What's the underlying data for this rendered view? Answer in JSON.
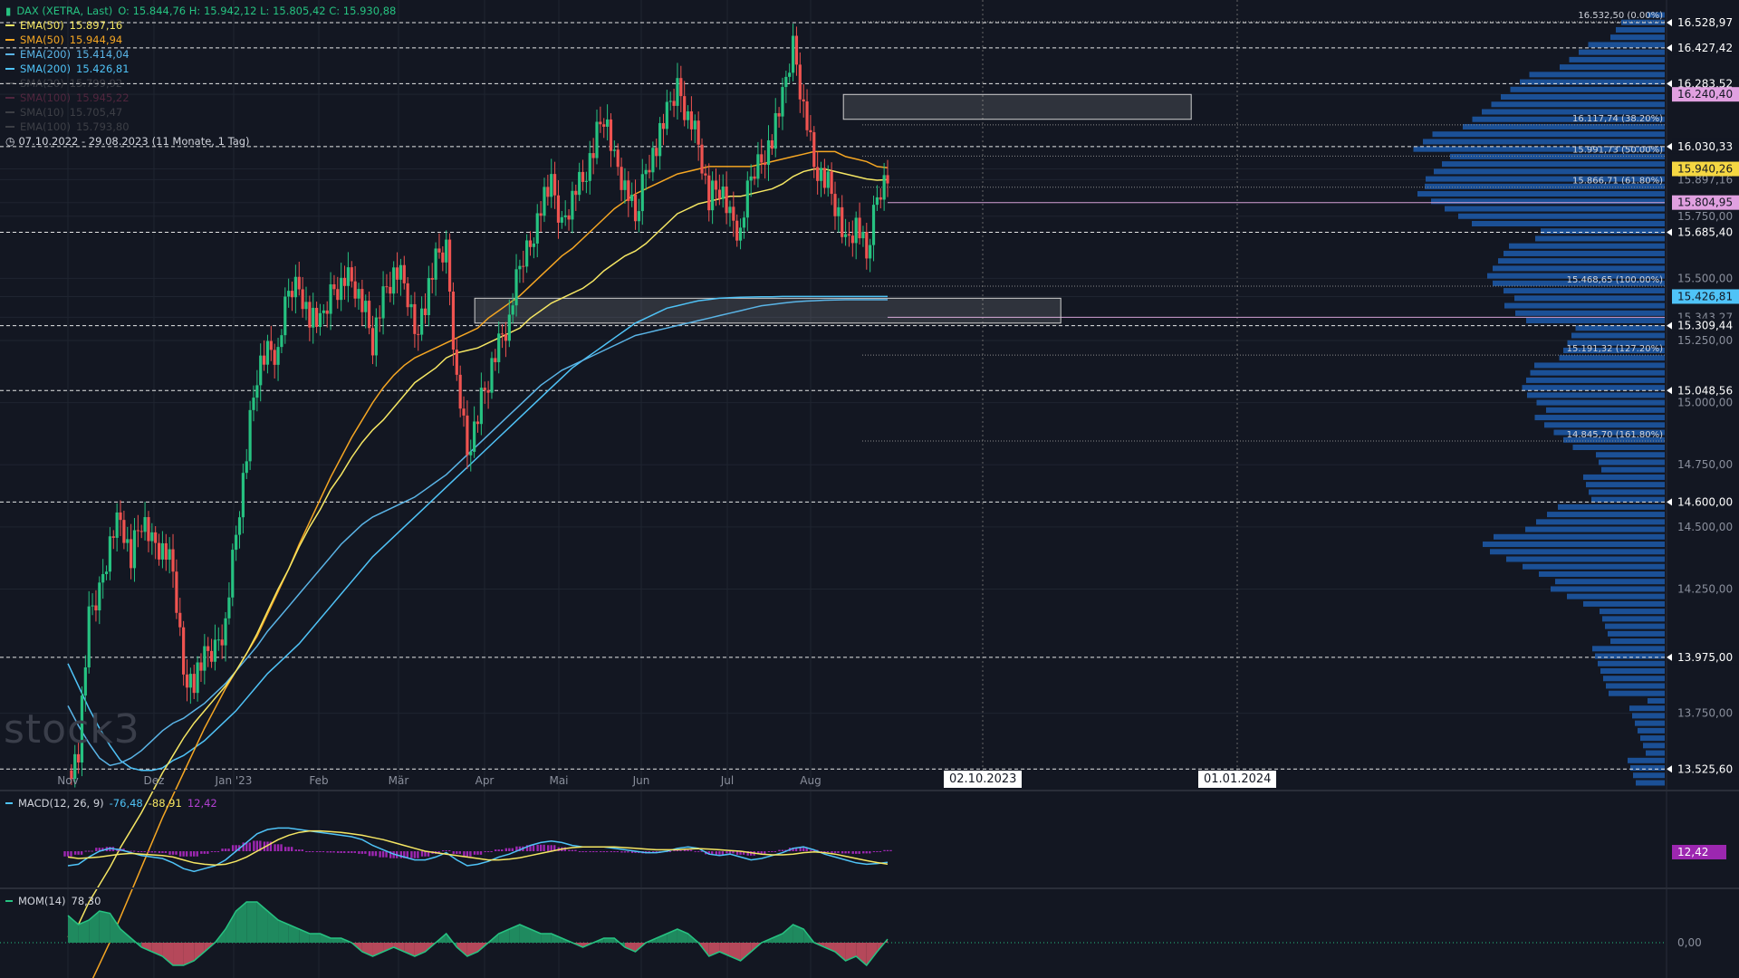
{
  "legend": {
    "title": "DAX (XETRA, Last)",
    "ohlc": "O: 15.844,76  H: 15.942,12  L: 15.805,42  C: 15.930,88",
    "indicators": [
      {
        "label": "EMA(50)",
        "value": "15.897,16",
        "color": "#f5e663",
        "dim": false
      },
      {
        "label": "SMA(50)",
        "value": "15.944,94",
        "color": "#f5a623",
        "dim": false
      },
      {
        "label": "EMA(200)",
        "value": "15.414,04",
        "color": "#5ab4e6",
        "dim": false
      },
      {
        "label": "SMA(200)",
        "value": "15.426,81",
        "color": "#4fc3f7",
        "dim": false
      },
      {
        "label": "SMA(20)",
        "value": "15.799,92",
        "color": "#888888",
        "dim": true
      },
      {
        "label": "SMA(100)",
        "value": "15.945,22",
        "color": "#c04070",
        "dim": true
      },
      {
        "label": "SMA(10)",
        "value": "15.705,47",
        "color": "#888888",
        "dim": true
      },
      {
        "label": "EMA(100)",
        "value": "15.793,80",
        "color": "#888888",
        "dim": true
      }
    ],
    "range": "07.10.2022 - 29.08.2023",
    "range_detail": "(11 Monate, 1 Tag)"
  },
  "watermark": "stock3",
  "date_tags": [
    "02.10.2023",
    "01.01.2024"
  ],
  "macd_legend": {
    "label": "MACD(12, 26, 9)",
    "v1": "-76,48",
    "v2": "-88,91",
    "v3": "12,42"
  },
  "mom_legend": {
    "label": "MOM(14)",
    "value": "78,30"
  },
  "macd_tag": "12,42",
  "mom_tag": "0,00",
  "colors": {
    "bg": "#131722",
    "up": "#26c281",
    "down": "#ef5350",
    "volume": "#1e5fb4",
    "macd_hist": "#9c27b0",
    "mom_fill_up": "#1f8a5f",
    "mom_fill_down": "#b5485a"
  },
  "chart_data": {
    "type": "candlestick",
    "xlabels": [
      "Nov",
      "Dez",
      "Jan '23",
      "Feb",
      "Mär",
      "Apr",
      "Mai",
      "Jun",
      "Jul",
      "Aug"
    ],
    "ylim": [
      13450,
      16620
    ],
    "price_ticks": [
      "16.528,97",
      "16.427,42",
      "16.283,52",
      "16.240,40",
      "16.030,33",
      "15.940,26",
      "15.897,16",
      "15.804,95",
      "15.750,00",
      "15.685,40",
      "15.500,00",
      "15.426,81",
      "15.343,27",
      "15.309,44",
      "15.250,00",
      "15.048,56",
      "15.000,00",
      "14.750,00",
      "14.600,00",
      "14.500,00",
      "14.250,00",
      "13.975,00",
      "13.750,00",
      "13.525,60"
    ],
    "fib_levels": [
      {
        "label": "16.532,50 (0.00%)",
        "value": 16532.5
      },
      {
        "label": "16.117,74 (38.20%)",
        "value": 16117.74
      },
      {
        "label": "15.991,73 (50.00%)",
        "value": 15991.73
      },
      {
        "label": "15.866,71 (61.80%)",
        "value": 15866.71
      },
      {
        "label": "15.468,65 (100.00%)",
        "value": 15468.65
      },
      {
        "label": "15.191,32 (127.20%)",
        "value": 15191.32
      },
      {
        "label": "14.845,70 (161.80%)",
        "value": 14845.7
      }
    ],
    "horizontal_levels": [
      16528.97,
      16427.42,
      16283.52,
      16030.33,
      15685.4,
      15309.44,
      15048.56,
      14600,
      13975,
      13525.6
    ],
    "tag_levels": [
      {
        "label": "16.240,40",
        "value": 16240.4,
        "bg": "#e0a0e0",
        "fg": "#131722"
      },
      {
        "label": "15.940,26",
        "value": 15940.26,
        "bg": "#f5d742",
        "fg": "#131722"
      },
      {
        "label": "15.804,95",
        "value": 15804.95,
        "bg": "#e0a0e0",
        "fg": "#131722"
      },
      {
        "label": "15.426,81",
        "value": 15426.81,
        "bg": "#4fc3f7",
        "fg": "#131722"
      }
    ],
    "zones": [
      {
        "from": 16240,
        "to": 16140,
        "x0": 0.485,
        "x1": 0.685
      },
      {
        "from": 15420,
        "to": 15320,
        "x0": 0.273,
        "x1": 0.61
      }
    ],
    "series": {
      "close_path": [
        13520,
        13600,
        14120,
        14240,
        14450,
        14540,
        14370,
        14540,
        14430,
        14410,
        14320,
        13930,
        13880,
        13960,
        14010,
        14120,
        14480,
        14800,
        15130,
        15200,
        15200,
        15450,
        15480,
        15350,
        15300,
        15440,
        15490,
        15500,
        15400,
        15250,
        15420,
        15520,
        15480,
        15300,
        15400,
        15560,
        15620,
        15100,
        14800,
        14950,
        15100,
        15230,
        15330,
        15550,
        15650,
        15800,
        15860,
        15710,
        15840,
        15900,
        16020,
        16170,
        15970,
        15870,
        15730,
        15960,
        16040,
        16150,
        16270,
        16160,
        16050,
        15810,
        15880,
        15740,
        15680,
        15910,
        15990,
        16070,
        16210,
        16440,
        16200,
        15960,
        15900,
        15810,
        15630,
        15720,
        15580,
        15850,
        15930
      ],
      "ema50": [
        12850,
        12900,
        12990,
        13060,
        13130,
        13210,
        13280,
        13350,
        13430,
        13510,
        13580,
        13650,
        13710,
        13760,
        13810,
        13860,
        13920,
        13990,
        14070,
        14160,
        14250,
        14330,
        14420,
        14500,
        14570,
        14650,
        14710,
        14780,
        14840,
        14890,
        14930,
        14980,
        15030,
        15080,
        15110,
        15140,
        15180,
        15200,
        15210,
        15220,
        15240,
        15260,
        15280,
        15300,
        15340,
        15370,
        15400,
        15420,
        15440,
        15460,
        15490,
        15530,
        15560,
        15590,
        15610,
        15640,
        15680,
        15720,
        15760,
        15780,
        15800,
        15810,
        15820,
        15830,
        15830,
        15840,
        15850,
        15860,
        15880,
        15910,
        15930,
        15940,
        15940,
        15930,
        15920,
        15910,
        15900,
        15895,
        15897
      ],
      "sma50": [
        12500,
        12560,
        12650,
        12740,
        12830,
        12930,
        13030,
        13130,
        13230,
        13330,
        13420,
        13510,
        13600,
        13690,
        13770,
        13850,
        13920,
        13990,
        14060,
        14150,
        14240,
        14330,
        14430,
        14520,
        14610,
        14700,
        14780,
        14860,
        14930,
        15000,
        15060,
        15110,
        15150,
        15180,
        15200,
        15220,
        15240,
        15260,
        15280,
        15300,
        15340,
        15370,
        15400,
        15430,
        15470,
        15510,
        15550,
        15590,
        15620,
        15660,
        15700,
        15740,
        15780,
        15810,
        15840,
        15860,
        15880,
        15900,
        15920,
        15930,
        15940,
        15950,
        15950,
        15950,
        15950,
        15950,
        15960,
        15970,
        15980,
        15990,
        16000,
        16010,
        16010,
        16010,
        15990,
        15980,
        15970,
        15950,
        15945
      ],
      "ema200": [
        13780,
        13700,
        13630,
        13570,
        13540,
        13550,
        13570,
        13600,
        13640,
        13680,
        13710,
        13730,
        13760,
        13790,
        13830,
        13870,
        13920,
        13970,
        14020,
        14080,
        14130,
        14180,
        14230,
        14280,
        14330,
        14380,
        14430,
        14470,
        14510,
        14540,
        14560,
        14580,
        14600,
        14620,
        14650,
        14680,
        14710,
        14750,
        14790,
        14830,
        14870,
        14910,
        14950,
        14990,
        15030,
        15070,
        15100,
        15130,
        15150,
        15170,
        15190,
        15210,
        15230,
        15250,
        15270,
        15280,
        15290,
        15300,
        15310,
        15320,
        15330,
        15340,
        15350,
        15360,
        15370,
        15380,
        15390,
        15395,
        15400,
        15405,
        15408,
        15410,
        15412,
        15413,
        15414,
        15414,
        15414,
        15414,
        15414
      ],
      "sma200": [
        13950,
        13860,
        13770,
        13690,
        13620,
        13560,
        13530,
        13520,
        13520,
        13530,
        13560,
        13580,
        13610,
        13640,
        13680,
        13720,
        13760,
        13810,
        13860,
        13910,
        13950,
        13990,
        14030,
        14080,
        14130,
        14180,
        14230,
        14280,
        14330,
        14380,
        14420,
        14460,
        14500,
        14540,
        14580,
        14620,
        14660,
        14700,
        14740,
        14780,
        14820,
        14860,
        14900,
        14940,
        14980,
        15020,
        15060,
        15100,
        15140,
        15170,
        15200,
        15230,
        15260,
        15290,
        15320,
        15340,
        15360,
        15380,
        15390,
        15400,
        15410,
        15415,
        15420,
        15422,
        15424,
        15425,
        15426,
        15426,
        15427,
        15427,
        15427,
        15427,
        15427,
        15427,
        15427,
        15427,
        15427,
        15427,
        15427
      ],
      "macd": [
        -100,
        -90,
        -40,
        0,
        20,
        10,
        -10,
        -30,
        -40,
        -50,
        -80,
        -120,
        -140,
        -120,
        -100,
        -60,
        0,
        60,
        120,
        150,
        160,
        160,
        150,
        140,
        130,
        120,
        110,
        100,
        80,
        40,
        10,
        -20,
        -40,
        -60,
        -60,
        -40,
        -10,
        -60,
        -100,
        -90,
        -70,
        -40,
        -20,
        10,
        40,
        60,
        70,
        60,
        40,
        30,
        30,
        30,
        20,
        10,
        0,
        -10,
        -10,
        0,
        20,
        30,
        20,
        -20,
        -30,
        -20,
        -40,
        -60,
        -50,
        -30,
        -10,
        20,
        30,
        10,
        -20,
        -40,
        -60,
        -80,
        -90,
        -85,
        -76
      ],
      "macd_signal": [
        -40,
        -50,
        -45,
        -40,
        -30,
        -20,
        -15,
        -20,
        -25,
        -30,
        -40,
        -60,
        -80,
        -90,
        -95,
        -90,
        -70,
        -40,
        0,
        40,
        80,
        110,
        130,
        140,
        140,
        135,
        130,
        120,
        110,
        95,
        80,
        60,
        40,
        20,
        0,
        -10,
        -20,
        -30,
        -40,
        -50,
        -60,
        -60,
        -55,
        -45,
        -30,
        -15,
        0,
        15,
        25,
        30,
        30,
        30,
        30,
        25,
        20,
        15,
        10,
        10,
        10,
        15,
        18,
        15,
        10,
        5,
        0,
        -10,
        -20,
        -25,
        -25,
        -20,
        -10,
        -5,
        -10,
        -20,
        -35,
        -50,
        -65,
        -78,
        -89
      ],
      "mom": [
        600,
        400,
        500,
        700,
        650,
        300,
        100,
        -100,
        -200,
        -300,
        -500,
        -500,
        -400,
        -200,
        0,
        300,
        700,
        900,
        900,
        700,
        500,
        400,
        300,
        200,
        200,
        100,
        100,
        0,
        -200,
        -300,
        -200,
        -100,
        -200,
        -300,
        -200,
        0,
        200,
        -100,
        -300,
        -200,
        0,
        200,
        300,
        400,
        300,
        200,
        200,
        100,
        0,
        -100,
        0,
        100,
        100,
        -100,
        -200,
        0,
        100,
        200,
        300,
        200,
        0,
        -300,
        -200,
        -300,
        -400,
        -200,
        0,
        100,
        200,
        400,
        300,
        0,
        -100,
        -200,
        -400,
        -300,
        -500,
        -200,
        78
      ]
    }
  }
}
